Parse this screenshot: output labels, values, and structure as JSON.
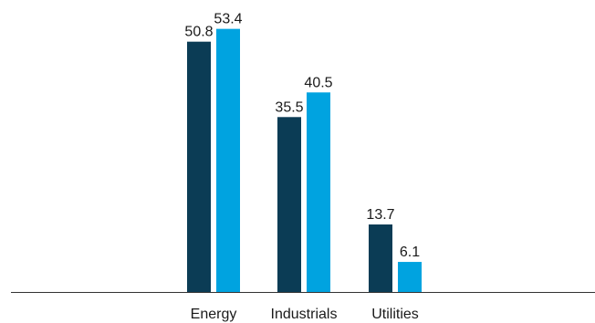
{
  "chart_data": {
    "type": "bar",
    "title": "",
    "xlabel": "",
    "ylabel": "",
    "categories": [
      "Energy",
      "Industrials",
      "Utilities"
    ],
    "series": [
      {
        "color": "#0b3c55",
        "values": [
          50.8,
          35.5,
          13.7
        ]
      },
      {
        "color": "#00a3e0",
        "values": [
          53.4,
          40.5,
          6.1
        ]
      }
    ],
    "ylim": [
      0,
      60
    ],
    "grid": false,
    "legend": "none",
    "axis_color": "#333333"
  }
}
